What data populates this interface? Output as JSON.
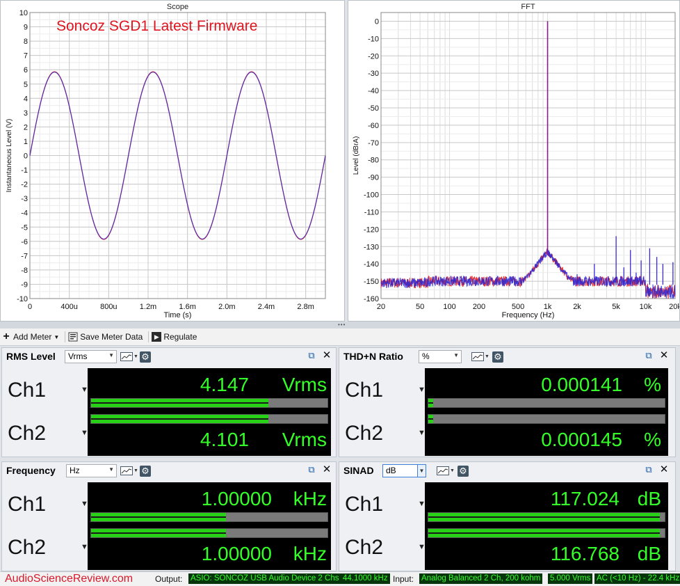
{
  "scope": {
    "title": "Scope",
    "annotation": "Soncoz SGD1 Latest Firmware",
    "annotation_color": "#e0141e",
    "chart_data": {
      "type": "line",
      "xlabel": "Time (s)",
      "ylabel": "Instantaneous Level (V)",
      "xlim": [
        0,
        0.003
      ],
      "ylim": [
        -10,
        10
      ],
      "xticks": [
        "0",
        "400u",
        "800u",
        "1.2m",
        "1.6m",
        "2.0m",
        "2.4m",
        "2.8m"
      ],
      "yticks": [
        "10",
        "9",
        "8",
        "7",
        "6",
        "5",
        "4",
        "3",
        "2",
        "1",
        "0",
        "-1",
        "-2",
        "-3",
        "-4",
        "-5",
        "-6",
        "-7",
        "-8",
        "-9",
        "-10"
      ],
      "waveform": "sine",
      "frequency_hz": 1000,
      "amplitude_v": 5.86,
      "series": [
        {
          "color": "#e02020"
        },
        {
          "color": "#2a2ad8"
        }
      ]
    }
  },
  "fft": {
    "title": "FFT",
    "chart_data": {
      "type": "line",
      "xlabel": "Frequency (Hz)",
      "ylabel": "Level (dBrA)",
      "xscale": "log",
      "xlim": [
        20,
        20000
      ],
      "ylim": [
        -160,
        5
      ],
      "xticks": [
        "20",
        "50",
        "100",
        "200",
        "500",
        "1k",
        "2k",
        "5k",
        "10k",
        "20k"
      ],
      "yticks": [
        "0",
        "-10",
        "-20",
        "-30",
        "-40",
        "-50",
        "-60",
        "-70",
        "-80",
        "-90",
        "-100",
        "-110",
        "-120",
        "-130",
        "-140",
        "-150",
        "-160"
      ],
      "fundamental": {
        "x": 1000,
        "y": 0
      },
      "noise_floor_db": -150,
      "harmonics": [
        {
          "x": 2000,
          "y": -146
        },
        {
          "x": 3000,
          "y": -140
        },
        {
          "x": 4000,
          "y": -148
        },
        {
          "x": 5000,
          "y": -124
        },
        {
          "x": 6000,
          "y": -142
        },
        {
          "x": 7000,
          "y": -132
        },
        {
          "x": 8000,
          "y": -145
        },
        {
          "x": 9000,
          "y": -138
        },
        {
          "x": 11000,
          "y": -131
        },
        {
          "x": 13000,
          "y": -136
        },
        {
          "x": 15000,
          "y": -140
        },
        {
          "x": 19000,
          "y": -139
        }
      ],
      "series": [
        {
          "color": "#e82020"
        },
        {
          "color": "#2626d6"
        }
      ]
    }
  },
  "toolbar": {
    "add_meter": "Add Meter",
    "save_meter_data": "Save Meter Data",
    "regulate": "Regulate"
  },
  "meters": {
    "rms": {
      "title": "RMS Level",
      "unit_select": "Vrms",
      "ch1": {
        "label": "Ch1",
        "value": "4.147",
        "unit": "Vrms",
        "bar": 0.75
      },
      "ch2": {
        "label": "Ch2",
        "value": "4.101",
        "unit": "Vrms",
        "bar": 0.75
      }
    },
    "thdn": {
      "title": "THD+N Ratio",
      "unit_select": "%",
      "ch1": {
        "label": "Ch1",
        "value": "0.000141",
        "unit": "%",
        "bar": 0.02
      },
      "ch2": {
        "label": "Ch2",
        "value": "0.000145",
        "unit": "%",
        "bar": 0.02
      }
    },
    "freq": {
      "title": "Frequency",
      "unit_select": "Hz",
      "ch1": {
        "label": "Ch1",
        "value": "1.00000",
        "unit": "kHz",
        "bar": 0.57
      },
      "ch2": {
        "label": "Ch2",
        "value": "1.00000",
        "unit": "kHz",
        "bar": 0.57
      }
    },
    "sinad": {
      "title": "SINAD",
      "unit_select": "dB",
      "ch1": {
        "label": "Ch1",
        "value": "117.024",
        "unit": "dB",
        "bar": 0.98
      },
      "ch2": {
        "label": "Ch2",
        "value": "116.768",
        "unit": "dB",
        "bar": 0.98
      }
    }
  },
  "statusbar": {
    "brand": "AudioScienceReview.com",
    "output_label": "Output:",
    "output_device": "ASIO: SONCOZ USB Audio Device 2 Chs",
    "output_rate": "44.1000 kHz",
    "input_label": "Input:",
    "input_device": "Analog Balanced 2 Ch, 200 kohm",
    "input_range": "5.000 Vrms",
    "input_coupling": "AC (<10 Hz) - 22.4 kHz"
  },
  "colors": {
    "readout_text": "#35ff28",
    "bar_fill": "#27d216",
    "brand": "#d8182a"
  }
}
